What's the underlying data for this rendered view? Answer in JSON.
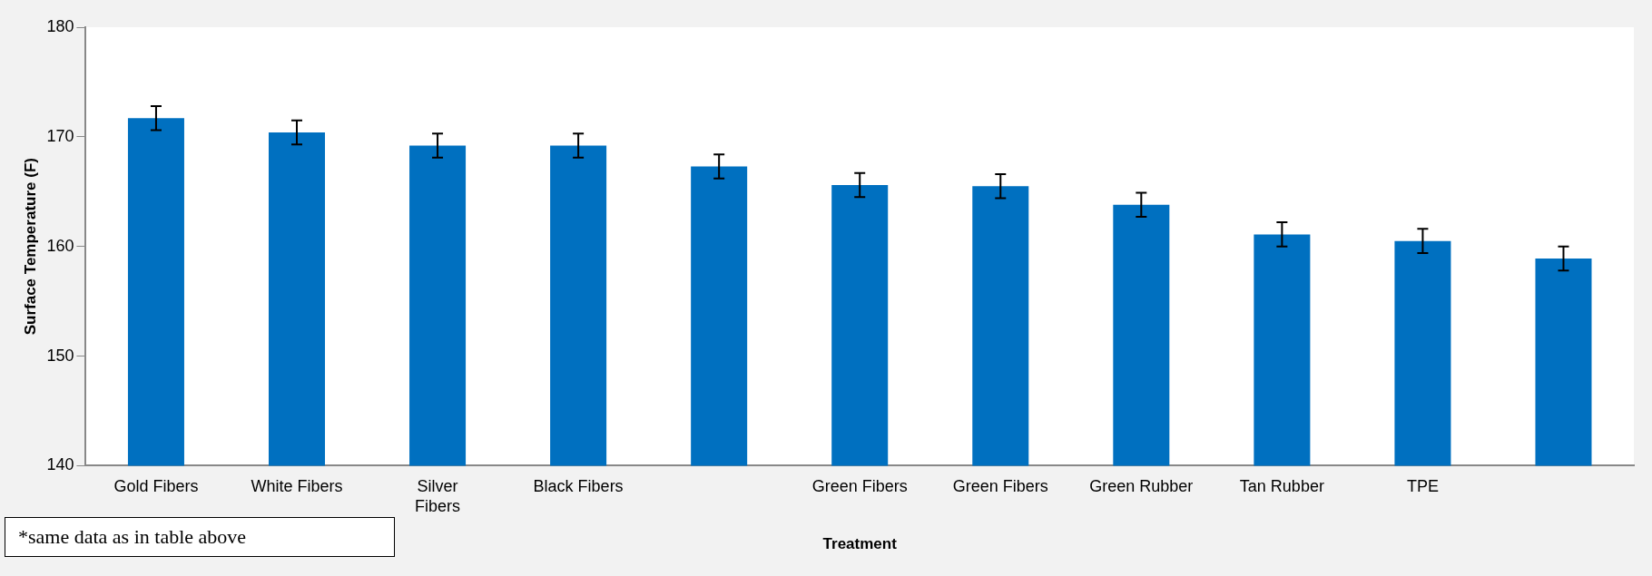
{
  "chart_data": {
    "type": "bar",
    "xlabel": "Treatment",
    "ylabel": "Surface Temperature (F)",
    "categories": [
      "Gold Fibers",
      "White Fibers",
      "Silver Fibers",
      "Black Fibers",
      null,
      "Green Fibers",
      "Green Fibers",
      "Green Rubber",
      "Tan Rubber",
      "TPE",
      null
    ],
    "values": [
      171.7,
      170.4,
      169.2,
      169.2,
      167.3,
      165.6,
      165.5,
      163.8,
      161.1,
      160.5,
      158.9
    ],
    "errors": [
      1.1,
      1.1,
      1.1,
      1.1,
      1.1,
      1.1,
      1.1,
      1.1,
      1.1,
      1.1,
      1.1
    ],
    "color": "#0070c0",
    "ylim": [
      140,
      180
    ],
    "yticks": [
      140,
      150,
      160,
      170,
      180
    ],
    "grid": false,
    "legend": false,
    "annotations": [
      "*same data as in table above"
    ]
  }
}
